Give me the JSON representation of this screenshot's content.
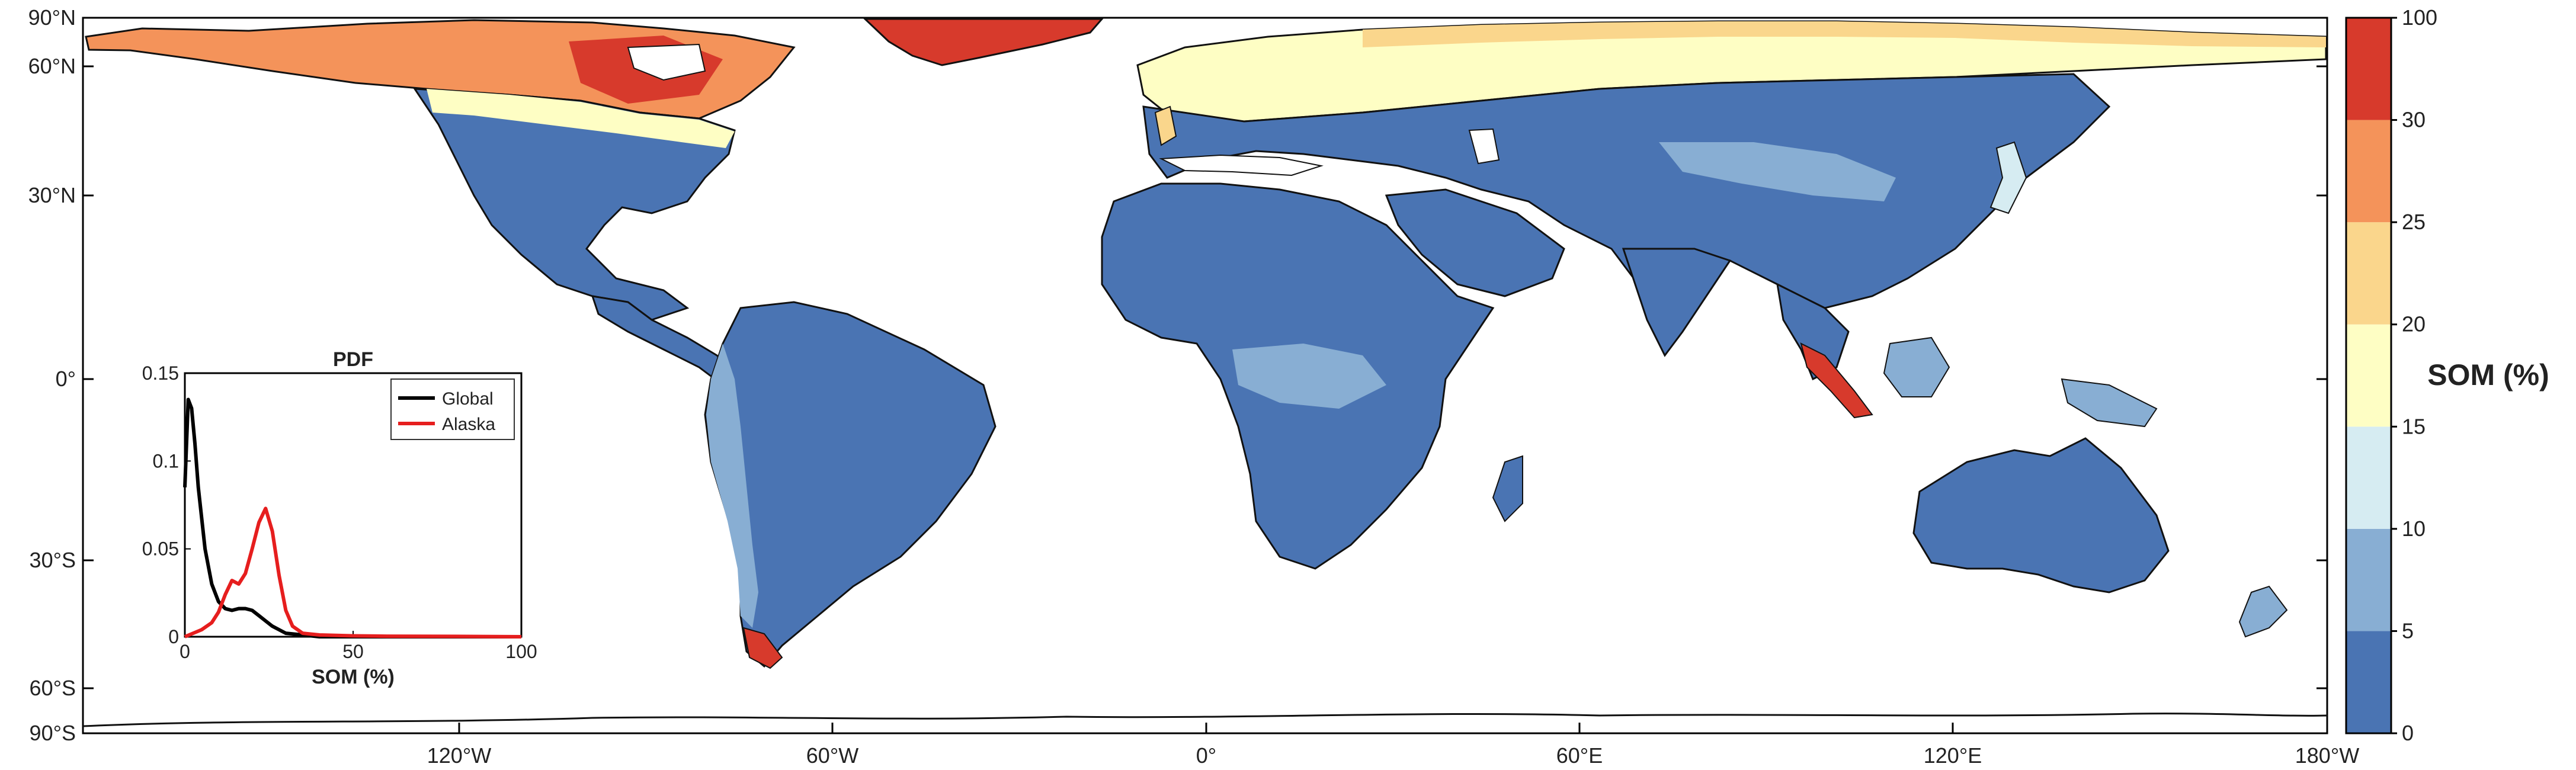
{
  "map": {
    "lat_labels": [
      "90°N",
      "60°N",
      "30°N",
      "0°",
      "30°S",
      "60°S",
      "90°S"
    ],
    "lon_labels": [
      "120°W",
      "60°W",
      "0°",
      "60°E",
      "120°E",
      "180°W"
    ]
  },
  "colorbar": {
    "title": "SOM (%)",
    "tick_labels": [
      "0",
      "5",
      "10",
      "15",
      "20",
      "25",
      "30",
      "100"
    ],
    "colors": [
      "#4a74b3",
      "#88aed3",
      "#d6ecf2",
      "#fefec4",
      "#fad68c",
      "#f4935a",
      "#d73a2c"
    ]
  },
  "legend_colors": {
    "land_low": "#4a74b3",
    "coast": "#111111",
    "global_line": "#000000",
    "alaska_line": "#e61e1e"
  },
  "inset": {
    "title": "PDF",
    "xlabel": "SOM (%)",
    "y_ticks": [
      "0",
      "0.05",
      "0.1",
      "0.15"
    ],
    "x_ticks": [
      "0",
      "50",
      "100"
    ],
    "legend": [
      "Global",
      "Alaska"
    ]
  },
  "chart_data": {
    "type": "line",
    "title": "PDF",
    "xlabel": "SOM (%)",
    "ylabel": "",
    "xlim": [
      0,
      100
    ],
    "ylim": [
      0,
      0.15
    ],
    "series": [
      {
        "name": "Global",
        "x": [
          0,
          1,
          2,
          3,
          4,
          6,
          8,
          10,
          12,
          14,
          16,
          18,
          20,
          22,
          24,
          26,
          28,
          30,
          35,
          40,
          50,
          60,
          80,
          100
        ],
        "y": [
          0.085,
          0.135,
          0.13,
          0.11,
          0.085,
          0.05,
          0.03,
          0.02,
          0.016,
          0.015,
          0.016,
          0.016,
          0.015,
          0.012,
          0.009,
          0.006,
          0.004,
          0.002,
          0.001,
          0,
          0,
          0,
          0,
          0
        ]
      },
      {
        "name": "Alaska",
        "x": [
          0,
          5,
          8,
          10,
          12,
          14,
          16,
          18,
          20,
          22,
          24,
          26,
          28,
          30,
          32,
          35,
          40,
          50,
          60,
          80,
          100
        ],
        "y": [
          0,
          0.004,
          0.008,
          0.014,
          0.024,
          0.032,
          0.03,
          0.036,
          0.05,
          0.065,
          0.073,
          0.06,
          0.035,
          0.015,
          0.006,
          0.002,
          0.001,
          0.0005,
          0.0003,
          0.0002,
          0
        ]
      }
    ]
  }
}
